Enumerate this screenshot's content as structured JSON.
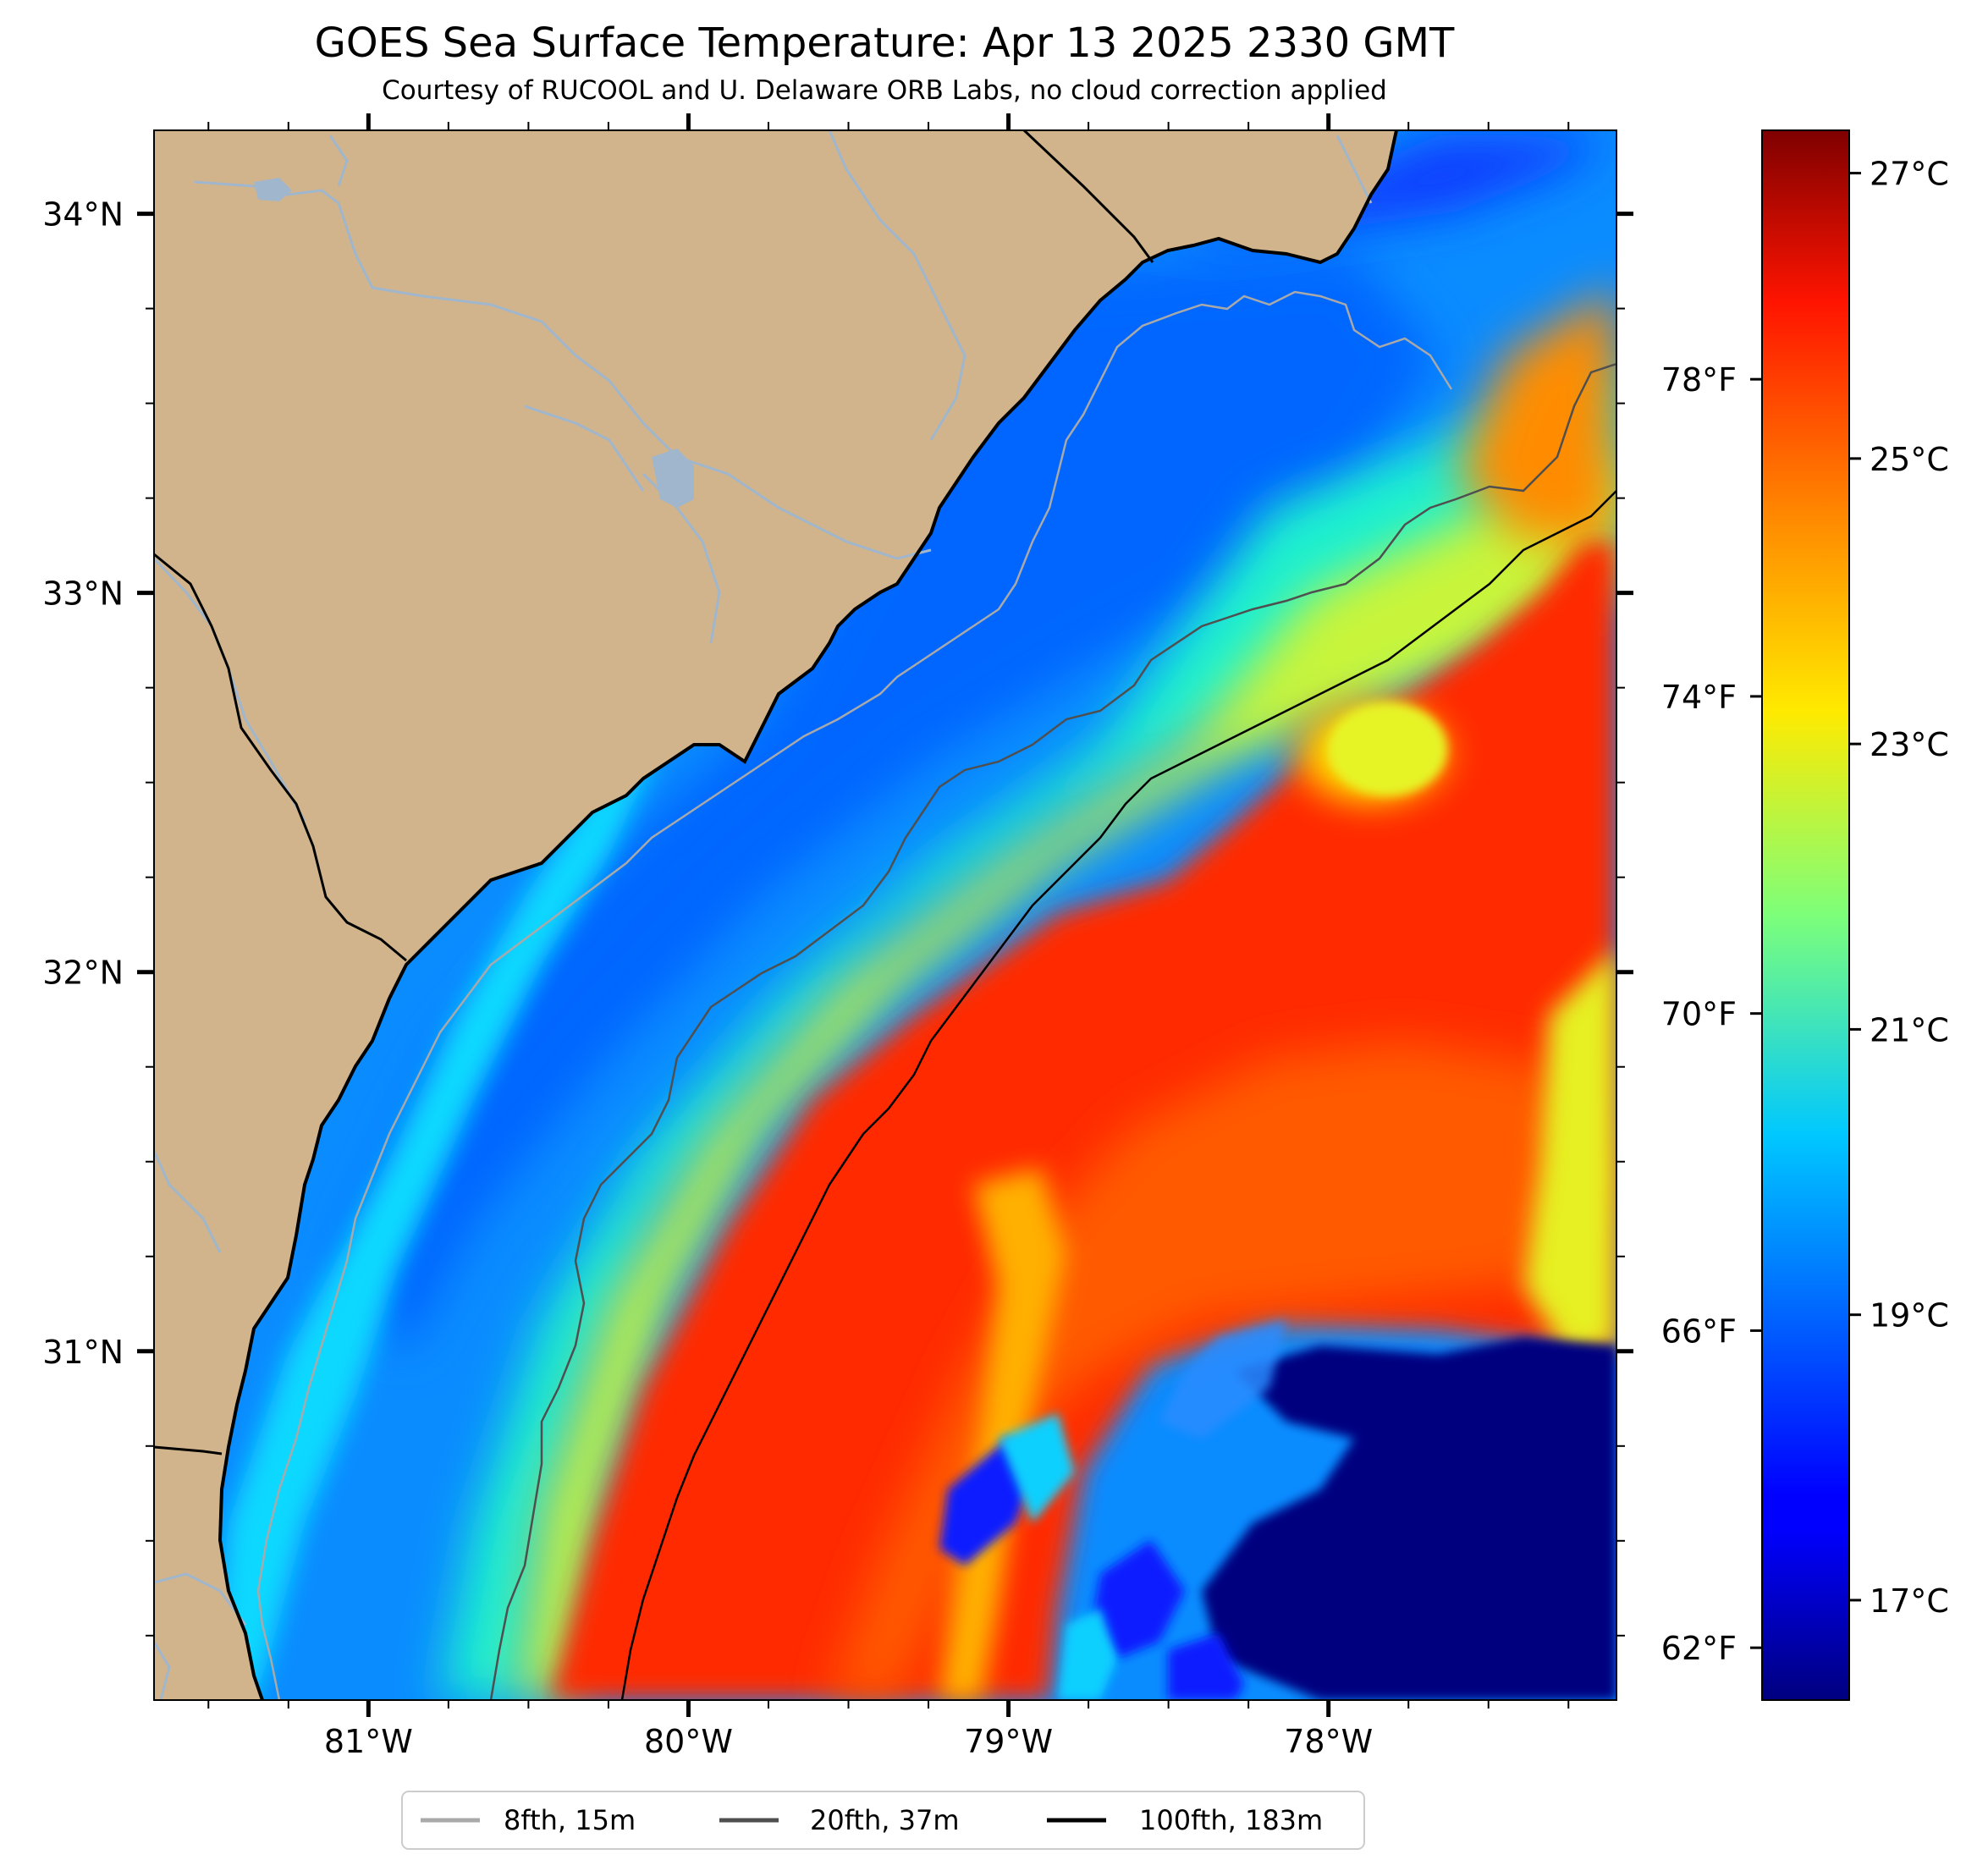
{
  "title": "GOES Sea Surface Temperature: Apr 13 2025 2330 GMT",
  "subtitle": "Courtesy of RUCOOL and U. Delaware ORB Labs, no cloud correction applied",
  "map": {
    "lon_range": [
      -81.67,
      -77.1
    ],
    "lat_range": [
      30.08,
      34.22
    ],
    "lat_ticks": [
      {
        "value": 34,
        "label": "34°N"
      },
      {
        "value": 33,
        "label": "33°N"
      },
      {
        "value": 32,
        "label": "32°N"
      },
      {
        "value": 31,
        "label": "31°N"
      }
    ],
    "lon_ticks": [
      {
        "value": -81,
        "label": "81°W"
      },
      {
        "value": -80,
        "label": "80°W"
      },
      {
        "value": -79,
        "label": "79°W"
      },
      {
        "value": -78,
        "label": "78°W"
      }
    ],
    "land_color": "#d2b48c",
    "coastline_color": "#000000",
    "river_color": "#9fb6cd"
  },
  "colorbar": {
    "celsius_range": [
      16.3,
      27.3
    ],
    "celsius_ticks": [
      {
        "value": 17,
        "label": "17°C"
      },
      {
        "value": 19,
        "label": "19°C"
      },
      {
        "value": 21,
        "label": "21°C"
      },
      {
        "value": 23,
        "label": "23°C"
      },
      {
        "value": 25,
        "label": "25°C"
      },
      {
        "value": 27,
        "label": "27°C"
      }
    ],
    "fahrenheit_ticks": [
      {
        "value": 62,
        "label": "62°F"
      },
      {
        "value": 66,
        "label": "66°F"
      },
      {
        "value": 70,
        "label": "70°F"
      },
      {
        "value": 74,
        "label": "74°F"
      },
      {
        "value": 78,
        "label": "78°F"
      }
    ],
    "colormap": "jet"
  },
  "legend": {
    "items": [
      {
        "label": "8fth, 15m",
        "color": "#a9a9a9"
      },
      {
        "label": "20fth, 37m",
        "color": "#4f4f4f"
      },
      {
        "label": "100fth, 183m",
        "color": "#000000"
      }
    ]
  }
}
